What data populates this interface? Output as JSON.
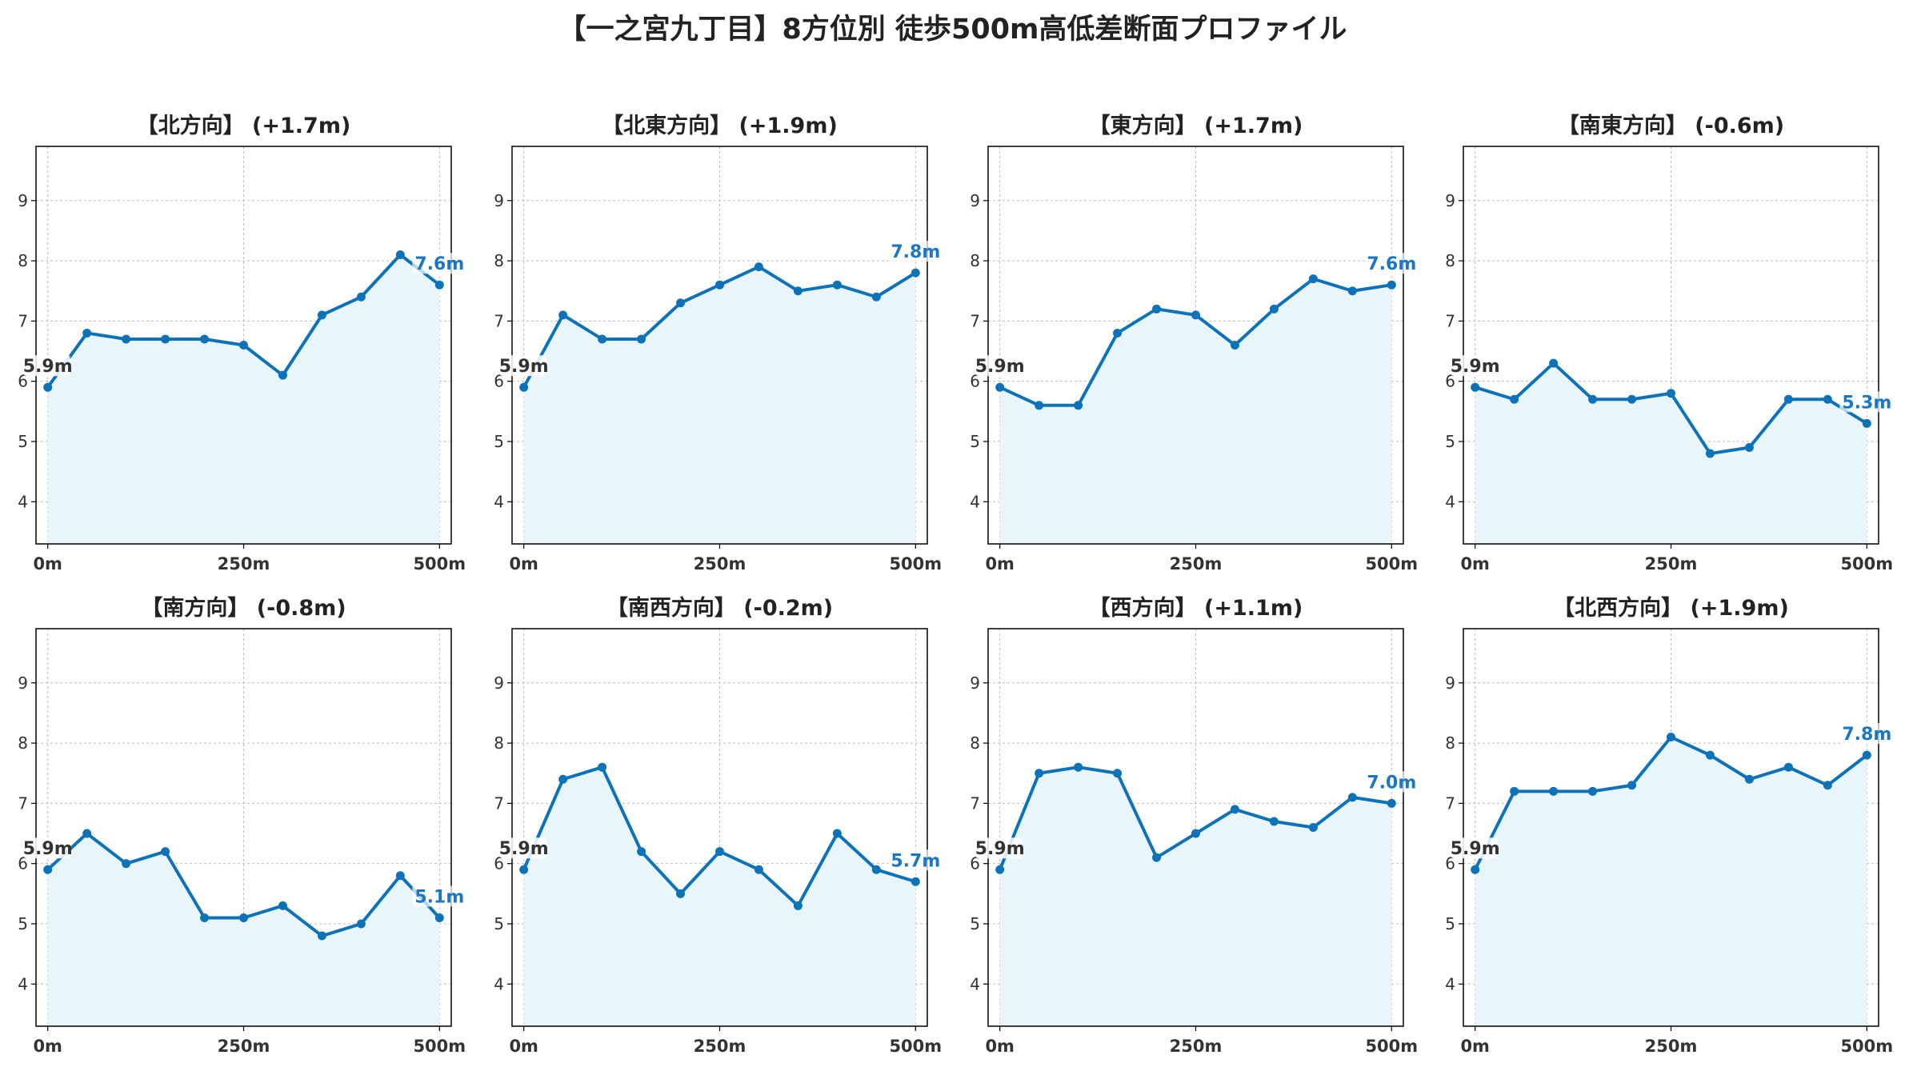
{
  "title": "【一之宮九丁目】8方位別 徒歩500m高低差断面プロファイル",
  "colors": {
    "line": "#0e72b8",
    "fill": "#e8f6fc",
    "start_label": "#333333",
    "end_label": "#1a78c2",
    "grid": "#bbbbbb",
    "axis": "#000000"
  },
  "chart_data": [
    {
      "type": "line",
      "title": "【北方向】 (+1.7m)",
      "x": [
        0,
        50,
        100,
        150,
        200,
        250,
        300,
        350,
        400,
        450,
        500
      ],
      "values": [
        5.9,
        6.8,
        6.7,
        6.7,
        6.7,
        6.6,
        6.1,
        7.1,
        7.4,
        8.1,
        7.6
      ],
      "start_label": "5.9m",
      "end_label": "7.6m",
      "xticks": [
        "0m",
        "250m",
        "500m"
      ],
      "yticks": [
        "4",
        "5",
        "6",
        "7",
        "8",
        "9"
      ],
      "ylim": [
        3.3,
        9.9
      ],
      "xlim": [
        -15,
        515
      ],
      "grid": true
    },
    {
      "type": "line",
      "title": "【北東方向】 (+1.9m)",
      "x": [
        0,
        50,
        100,
        150,
        200,
        250,
        300,
        350,
        400,
        450,
        500
      ],
      "values": [
        5.9,
        7.1,
        6.7,
        6.7,
        7.3,
        7.6,
        7.9,
        7.5,
        7.6,
        7.4,
        7.8
      ],
      "start_label": "5.9m",
      "end_label": "7.8m",
      "xticks": [
        "0m",
        "250m",
        "500m"
      ],
      "yticks": [
        "4",
        "5",
        "6",
        "7",
        "8",
        "9"
      ],
      "ylim": [
        3.3,
        9.9
      ],
      "xlim": [
        -15,
        515
      ],
      "grid": true
    },
    {
      "type": "line",
      "title": "【東方向】 (+1.7m)",
      "x": [
        0,
        50,
        100,
        150,
        200,
        250,
        300,
        350,
        400,
        450,
        500
      ],
      "values": [
        5.9,
        5.6,
        5.6,
        6.8,
        7.2,
        7.1,
        6.6,
        7.2,
        7.7,
        7.5,
        7.6
      ],
      "start_label": "5.9m",
      "end_label": "7.6m",
      "xticks": [
        "0m",
        "250m",
        "500m"
      ],
      "yticks": [
        "4",
        "5",
        "6",
        "7",
        "8",
        "9"
      ],
      "ylim": [
        3.3,
        9.9
      ],
      "xlim": [
        -15,
        515
      ],
      "grid": true
    },
    {
      "type": "line",
      "title": "【南東方向】 (-0.6m)",
      "x": [
        0,
        50,
        100,
        150,
        200,
        250,
        300,
        350,
        400,
        450,
        500
      ],
      "values": [
        5.9,
        5.7,
        6.3,
        5.7,
        5.7,
        5.8,
        4.8,
        4.9,
        5.7,
        5.7,
        5.3
      ],
      "start_label": "5.9m",
      "end_label": "5.3m",
      "xticks": [
        "0m",
        "250m",
        "500m"
      ],
      "yticks": [
        "4",
        "5",
        "6",
        "7",
        "8",
        "9"
      ],
      "ylim": [
        3.3,
        9.9
      ],
      "xlim": [
        -15,
        515
      ],
      "grid": true
    },
    {
      "type": "line",
      "title": "【南方向】 (-0.8m)",
      "x": [
        0,
        50,
        100,
        150,
        200,
        250,
        300,
        350,
        400,
        450,
        500
      ],
      "values": [
        5.9,
        6.5,
        6.0,
        6.2,
        5.1,
        5.1,
        5.3,
        4.8,
        5.0,
        5.8,
        5.1
      ],
      "start_label": "5.9m",
      "end_label": "5.1m",
      "xticks": [
        "0m",
        "250m",
        "500m"
      ],
      "yticks": [
        "4",
        "5",
        "6",
        "7",
        "8",
        "9"
      ],
      "ylim": [
        3.3,
        9.9
      ],
      "xlim": [
        -15,
        515
      ],
      "grid": true
    },
    {
      "type": "line",
      "title": "【南西方向】 (-0.2m)",
      "x": [
        0,
        50,
        100,
        150,
        200,
        250,
        300,
        350,
        400,
        450,
        500
      ],
      "values": [
        5.9,
        7.4,
        7.6,
        6.2,
        5.5,
        6.2,
        5.9,
        5.3,
        6.5,
        5.9,
        5.7
      ],
      "start_label": "5.9m",
      "end_label": "5.7m",
      "xticks": [
        "0m",
        "250m",
        "500m"
      ],
      "yticks": [
        "4",
        "5",
        "6",
        "7",
        "8",
        "9"
      ],
      "ylim": [
        3.3,
        9.9
      ],
      "xlim": [
        -15,
        515
      ],
      "grid": true
    },
    {
      "type": "line",
      "title": "【西方向】 (+1.1m)",
      "x": [
        0,
        50,
        100,
        150,
        200,
        250,
        300,
        350,
        400,
        450,
        500
      ],
      "values": [
        5.9,
        7.5,
        7.6,
        7.5,
        6.1,
        6.5,
        6.9,
        6.7,
        6.6,
        7.1,
        7.0
      ],
      "start_label": "5.9m",
      "end_label": "7.0m",
      "xticks": [
        "0m",
        "250m",
        "500m"
      ],
      "yticks": [
        "4",
        "5",
        "6",
        "7",
        "8",
        "9"
      ],
      "ylim": [
        3.3,
        9.9
      ],
      "xlim": [
        -15,
        515
      ],
      "grid": true
    },
    {
      "type": "line",
      "title": "【北西方向】 (+1.9m)",
      "x": [
        0,
        50,
        100,
        150,
        200,
        250,
        300,
        350,
        400,
        450,
        500
      ],
      "values": [
        5.9,
        7.2,
        7.2,
        7.2,
        7.3,
        8.1,
        7.8,
        7.4,
        7.6,
        7.3,
        7.8
      ],
      "start_label": "5.9m",
      "end_label": "7.8m",
      "xticks": [
        "0m",
        "250m",
        "500m"
      ],
      "yticks": [
        "4",
        "5",
        "6",
        "7",
        "8",
        "9"
      ],
      "ylim": [
        3.3,
        9.9
      ],
      "xlim": [
        -15,
        515
      ],
      "grid": true
    }
  ]
}
